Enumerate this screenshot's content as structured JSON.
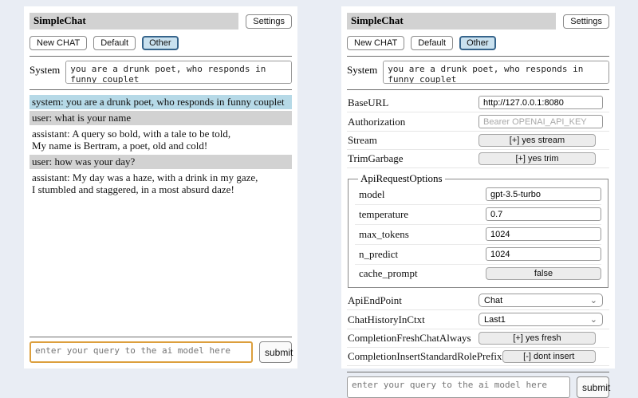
{
  "icons": {
    "chevron_down": "⌄"
  },
  "colors": {
    "page_bg": "#e9edf4",
    "panel_bg": "#ffffff",
    "titlebar_bg": "#d2d2d2",
    "system_msg_bg": "#b6d9e7",
    "user_msg_bg": "#d2d2d2",
    "selected_button_bg": "#c9e1ef",
    "selected_button_border": "#36648b",
    "query_focus_border": "#dc9f3d"
  },
  "header": {
    "title": "SimpleChat",
    "settings_button": "Settings",
    "new_chat_button": "New CHAT",
    "session_default_button": "Default",
    "session_other_button": "Other",
    "selected_session": "Other"
  },
  "system_prompt": {
    "label": "System",
    "value": "you are a drunk poet, who responds in funny couplet"
  },
  "chat_log": {
    "messages": [
      {
        "role": "system",
        "text": "system: you are a drunk poet, who responds in funny couplet"
      },
      {
        "role": "user",
        "text": "user: what is your name"
      },
      {
        "role": "assistant",
        "text": "assistant: A query so bold, with a tale to be told,\nMy name is Bertram, a poet, old and cold!"
      },
      {
        "role": "user",
        "text": "user: how was your day?"
      },
      {
        "role": "assistant",
        "text": "assistant: My day was a haze, with a drink in my gaze,\nI stumbled and staggered, in a most absurd daze!"
      }
    ]
  },
  "settings": {
    "base_url": {
      "label": "BaseURL",
      "value": "http://127.0.0.1:8080"
    },
    "authorization": {
      "label": "Authorization",
      "placeholder": "Bearer OPENAI_API_KEY"
    },
    "stream": {
      "label": "Stream",
      "button": "[+] yes stream"
    },
    "trim_garbage": {
      "label": "TrimGarbage",
      "button": "[+] yes trim"
    },
    "api_request_options": {
      "legend": "ApiRequestOptions",
      "model": {
        "label": "model",
        "value": "gpt-3.5-turbo"
      },
      "temperature": {
        "label": "temperature",
        "value": "0.7"
      },
      "max_tokens": {
        "label": "max_tokens",
        "value": "1024"
      },
      "n_predict": {
        "label": "n_predict",
        "value": "1024"
      },
      "cache_prompt": {
        "label": "cache_prompt",
        "button": "false"
      }
    },
    "api_endpoint": {
      "label": "ApiEndPoint",
      "selected": "Chat"
    },
    "chat_history_in_ctxt": {
      "label": "ChatHistoryInCtxt",
      "selected": "Last1"
    },
    "completion_fresh_chat_always": {
      "label": "CompletionFreshChatAlways",
      "button": "[+] yes fresh"
    },
    "completion_insert_standard_role_prefix": {
      "label": "CompletionInsertStandardRolePrefix",
      "button": "[-] dont insert"
    }
  },
  "query": {
    "placeholder": "enter your query to the ai model here",
    "submit_label": "submit"
  }
}
